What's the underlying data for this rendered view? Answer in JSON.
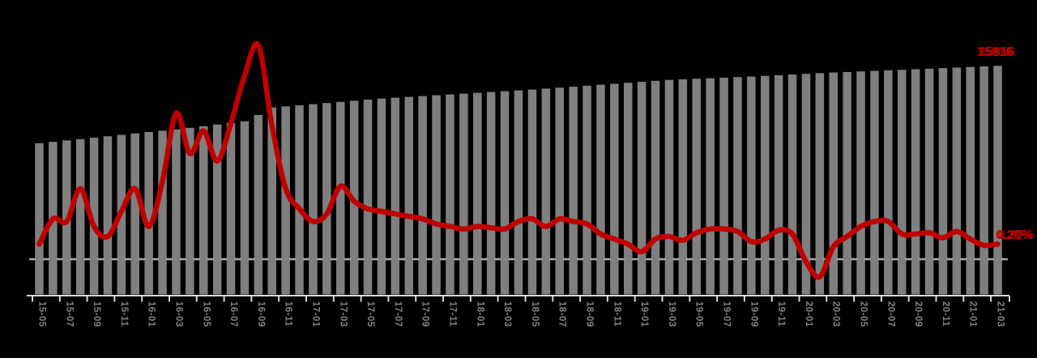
{
  "chart_data": {
    "type": "combo",
    "title": "",
    "legend": "none",
    "background_color": "#000000",
    "bar_color": "#7f7f7f",
    "line_color": "#c00000",
    "axis_color": "#d9d9d9",
    "tick_label_color": "#848484",
    "x_tick_label_every": 2,
    "x_tick_label_rotation_deg": 90,
    "categories": [
      "15-05",
      "15-06",
      "15-07",
      "15-08",
      "15-09",
      "15-10",
      "15-11",
      "15-12",
      "16-01",
      "16-02",
      "16-03",
      "16-04",
      "16-05",
      "16-06",
      "16-07",
      "16-08",
      "16-09",
      "16-10",
      "16-11",
      "16-12",
      "17-01",
      "17-02",
      "17-03",
      "17-04",
      "17-05",
      "17-06",
      "17-07",
      "17-08",
      "17-09",
      "17-10",
      "17-11",
      "17-12",
      "18-01",
      "18-02",
      "18-03",
      "18-04",
      "18-05",
      "18-06",
      "18-07",
      "18-08",
      "18-09",
      "18-10",
      "18-11",
      "18-12",
      "19-01",
      "19-02",
      "19-03",
      "19-04",
      "19-05",
      "19-06",
      "19-07",
      "19-08",
      "19-09",
      "19-10",
      "19-11",
      "19-12",
      "20-01",
      "20-02",
      "20-03",
      "20-04",
      "20-05",
      "20-06",
      "20-07",
      "20-08",
      "20-09",
      "20-10",
      "20-11",
      "20-12",
      "21-01",
      "21-02",
      "21-03"
    ],
    "series": [
      {
        "name": "count",
        "type": "bar",
        "color": "#7f7f7f",
        "ylim": [
          0,
          20500
        ],
        "values": [
          10530,
          10625,
          10720,
          10810,
          10910,
          11010,
          11110,
          11210,
          11305,
          11400,
          11490,
          11600,
          11715,
          11830,
          11945,
          12060,
          12500,
          13020,
          13095,
          13170,
          13245,
          13324,
          13403,
          13482,
          13561,
          13640,
          13697,
          13754,
          13811,
          13868,
          13925,
          13980,
          14037,
          14094,
          14151,
          14208,
          14265,
          14332,
          14399,
          14466,
          14533,
          14600,
          14668,
          14736,
          14804,
          14872,
          14940,
          14978,
          15016,
          15054,
          15092,
          15130,
          15170,
          15217,
          15264,
          15311,
          15358,
          15405,
          15450,
          15488,
          15526,
          15564,
          15602,
          15640,
          15680,
          15719,
          15758,
          15797,
          15836,
          15875,
          15916
        ]
      },
      {
        "name": "rate_percent",
        "type": "line",
        "unit": "%",
        "color": "#c00000",
        "ylim": [
          0,
          1.17
        ],
        "values": [
          0.2,
          0.3,
          0.29,
          0.42,
          0.27,
          0.23,
          0.33,
          0.42,
          0.27,
          0.45,
          0.72,
          0.56,
          0.65,
          0.53,
          0.68,
          0.87,
          0.99,
          0.67,
          0.42,
          0.34,
          0.29,
          0.32,
          0.43,
          0.37,
          0.34,
          0.33,
          0.32,
          0.31,
          0.3,
          0.28,
          0.27,
          0.26,
          0.27,
          0.265,
          0.26,
          0.29,
          0.3,
          0.27,
          0.3,
          0.29,
          0.28,
          0.24,
          0.22,
          0.2,
          0.17,
          0.22,
          0.23,
          0.215,
          0.245,
          0.26,
          0.26,
          0.25,
          0.21,
          0.22,
          0.255,
          0.24,
          0.13,
          0.07,
          0.19,
          0.23,
          0.27,
          0.29,
          0.29,
          0.24,
          0.24,
          0.245,
          0.225,
          0.25,
          0.22,
          0.195,
          0.2
        ]
      }
    ],
    "reference_line": {
      "axis": "rate_percent",
      "value": 0.14,
      "style": "dashed",
      "color": "#b3b3b3"
    },
    "annotations": {
      "bar_final_label": "15916",
      "line_final_label": "0.20%"
    }
  }
}
